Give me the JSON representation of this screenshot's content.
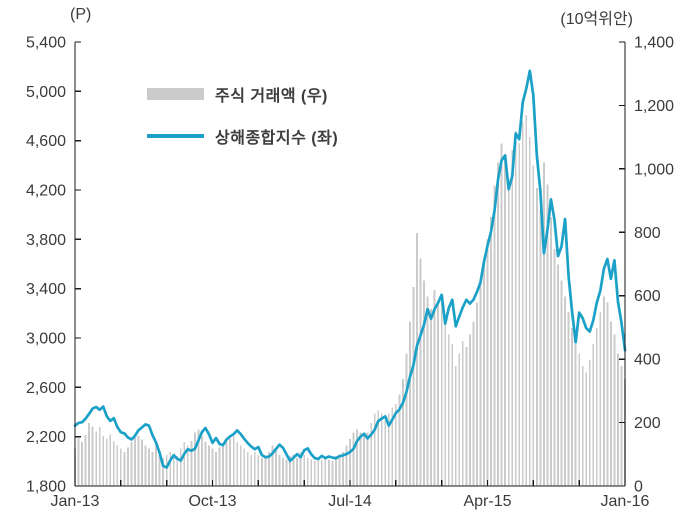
{
  "chart_data": {
    "type": "combo",
    "title": "",
    "x_axis": {
      "labels": [
        "Jan-13",
        "Oct-13",
        "Jul-14",
        "Apr-15",
        "Jan-16"
      ],
      "minor_ticks": 13,
      "major_every": 3,
      "range_months": 36
    },
    "left_axis": {
      "unit": "(P)",
      "min": 1800,
      "max": 5400,
      "step": 400,
      "tick_labels": [
        "5,400",
        "5,000",
        "4,600",
        "4,200",
        "3,800",
        "3,400",
        "3,000",
        "2,600",
        "2,200",
        "1,800"
      ]
    },
    "right_axis": {
      "unit": "(10억위안)",
      "min": 0,
      "max": 1400,
      "step": 200,
      "tick_labels": [
        "1,400",
        "1,200",
        "1,000",
        "800",
        "600",
        "400",
        "200",
        "0"
      ]
    },
    "legend": [
      {
        "label": "주식 거래액 (우)",
        "marker": "bar"
      },
      {
        "label": "상해종합지수 (좌)",
        "marker": "line"
      }
    ],
    "colors": {
      "line": "#1ba1c8",
      "bar": "#cbcbcb",
      "axis": "#1a1a1a",
      "text": "#3b3b3b"
    },
    "series": [
      {
        "name": "주식 거래액",
        "type": "bar",
        "axis": "right",
        "color": "#cbcbcb",
        "values": [
          118,
          152,
          139,
          161,
          198,
          188,
          172,
          186,
          158,
          148,
          162,
          141,
          128,
          118,
          108,
          121,
          138,
          151,
          158,
          147,
          128,
          118,
          108,
          128,
          112,
          88,
          98,
          108,
          99,
          94,
          118,
          139,
          128,
          142,
          168,
          178,
          158,
          141,
          128,
          118,
          108,
          121,
          128,
          138,
          148,
          158,
          139,
          128,
          118,
          108,
          98,
          108,
          98,
          88,
          94,
          108,
          128,
          118,
          98,
          88,
          84,
          94,
          99,
          88,
          108,
          98,
          88,
          84,
          79,
          88,
          84,
          89,
          84,
          79,
          94,
          99,
          108,
          128,
          148,
          168,
          178,
          168,
          158,
          168,
          198,
          228,
          238,
          228,
          208,
          228,
          248,
          258,
          288,
          338,
          418,
          518,
          628,
          798,
          718,
          648,
          598,
          558,
          618,
          578,
          598,
          518,
          478,
          448,
          378,
          418,
          458,
          438,
          478,
          518,
          578,
          648,
          718,
          778,
          848,
          948,
          1020,
          1080,
          1040,
          970,
          1060,
          1120,
          1080,
          1150,
          1170,
          1100,
          1010,
          940,
          870,
          1020,
          950,
          848,
          748,
          698,
          648,
          598,
          548,
          498,
          448,
          418,
          378,
          358,
          398,
          448,
          498,
          548,
          598,
          578,
          518,
          478,
          418,
          378,
          338
        ]
      },
      {
        "name": "상해종합지수",
        "type": "line",
        "axis": "left",
        "color": "#1ba1c8",
        "values": [
          2289,
          2311,
          2317,
          2346,
          2385,
          2428,
          2441,
          2418,
          2444,
          2366,
          2328,
          2350,
          2279,
          2236,
          2226,
          2194,
          2177,
          2206,
          2252,
          2275,
          2300,
          2289,
          2211,
          2151,
          2068,
          1963,
          1950,
          2007,
          2050,
          2021,
          2006,
          2061,
          2098,
          2086,
          2101,
          2169,
          2237,
          2270,
          2220,
          2150,
          2189,
          2141,
          2132,
          2178,
          2202,
          2221,
          2251,
          2221,
          2182,
          2148,
          2120,
          2098,
          2116,
          2051,
          2033,
          2038,
          2064,
          2100,
          2135,
          2109,
          2056,
          2004,
          2030,
          2058,
          2033,
          2089,
          2105,
          2058,
          2026,
          2019,
          2044,
          2026,
          2039,
          2031,
          2024,
          2042,
          2048,
          2059,
          2075,
          2102,
          2164,
          2201,
          2223,
          2186,
          2217,
          2256,
          2326,
          2347,
          2364,
          2290,
          2339,
          2391,
          2420,
          2473,
          2561,
          2683,
          2780,
          2937,
          3021,
          3108,
          3234,
          3157,
          3235,
          3286,
          3350,
          3116,
          3242,
          3310,
          3095,
          3175,
          3250,
          3310,
          3279,
          3310,
          3372,
          3450,
          3617,
          3748,
          3863,
          4034,
          4288,
          4441,
          4480,
          4206,
          4308,
          4658,
          4612,
          4912,
          5023,
          5166,
          4967,
          4478,
          4193,
          3687,
          3877,
          4124,
          3957,
          3664,
          3744,
          3965,
          3500,
          3210,
          2965,
          3206,
          3160,
          3080,
          3052,
          3143,
          3287,
          3383,
          3560,
          3640,
          3480,
          3630,
          3296,
          3125,
          2901
        ]
      }
    ]
  }
}
